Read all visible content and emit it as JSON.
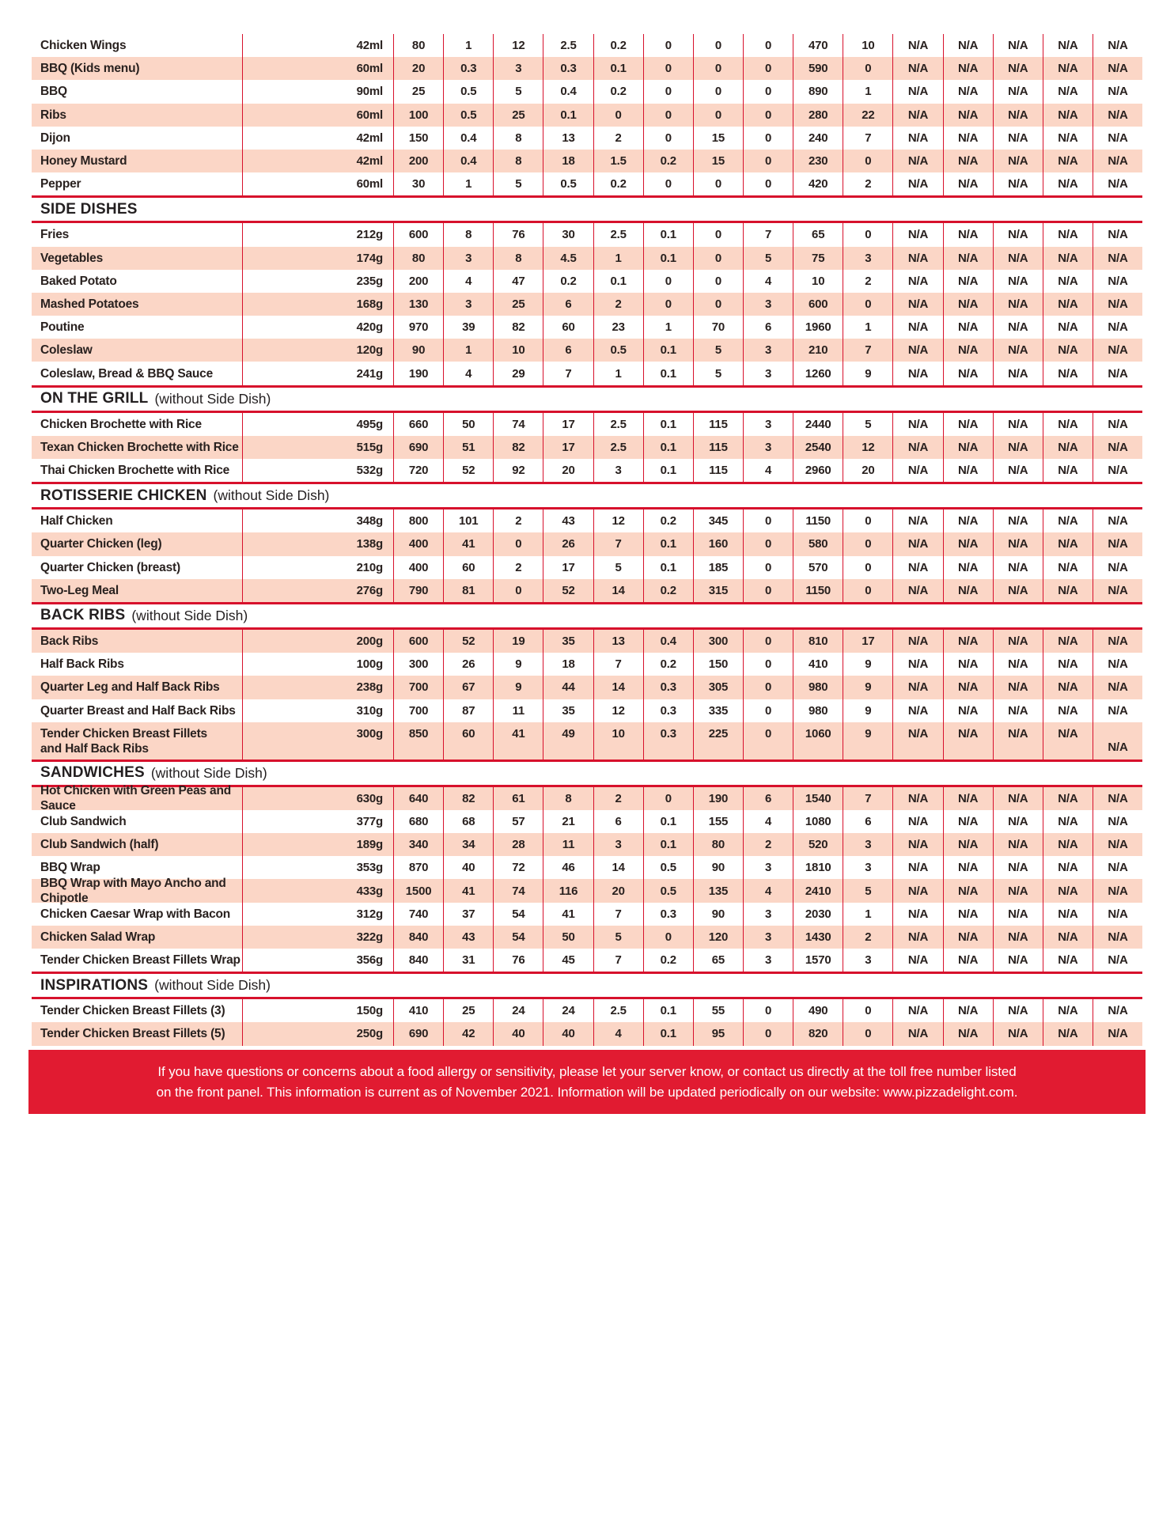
{
  "table": {
    "sections": [
      {
        "title": "",
        "subtitle": "",
        "rows": [
          {
            "name": "Chicken Wings",
            "serving": "42ml",
            "values": [
              "80",
              "1",
              "12",
              "2.5",
              "0.2",
              "0",
              "0",
              "0",
              "470",
              "10",
              "N/A",
              "N/A",
              "N/A",
              "N/A",
              "N/A"
            ]
          },
          {
            "name": "BBQ (Kids menu)",
            "serving": "60ml",
            "values": [
              "20",
              "0.3",
              "3",
              "0.3",
              "0.1",
              "0",
              "0",
              "0",
              "590",
              "0",
              "N/A",
              "N/A",
              "N/A",
              "N/A",
              "N/A"
            ]
          },
          {
            "name": "BBQ",
            "serving": "90ml",
            "values": [
              "25",
              "0.5",
              "5",
              "0.4",
              "0.2",
              "0",
              "0",
              "0",
              "890",
              "1",
              "N/A",
              "N/A",
              "N/A",
              "N/A",
              "N/A"
            ]
          },
          {
            "name": "Ribs",
            "serving": "60ml",
            "values": [
              "100",
              "0.5",
              "25",
              "0.1",
              "0",
              "0",
              "0",
              "0",
              "280",
              "22",
              "N/A",
              "N/A",
              "N/A",
              "N/A",
              "N/A"
            ]
          },
          {
            "name": "Dijon",
            "serving": "42ml",
            "values": [
              "150",
              "0.4",
              "8",
              "13",
              "2",
              "0",
              "15",
              "0",
              "240",
              "7",
              "N/A",
              "N/A",
              "N/A",
              "N/A",
              "N/A"
            ]
          },
          {
            "name": "Honey Mustard",
            "serving": "42ml",
            "values": [
              "200",
              "0.4",
              "8",
              "18",
              "1.5",
              "0.2",
              "15",
              "0",
              "230",
              "0",
              "N/A",
              "N/A",
              "N/A",
              "N/A",
              "N/A"
            ]
          },
          {
            "name": "Pepper",
            "serving": "60ml",
            "values": [
              "30",
              "1",
              "5",
              "0.5",
              "0.2",
              "0",
              "0",
              "0",
              "420",
              "2",
              "N/A",
              "N/A",
              "N/A",
              "N/A",
              "N/A"
            ]
          }
        ]
      },
      {
        "title": "SIDE DISHES",
        "subtitle": "",
        "rows": [
          {
            "name": "Fries",
            "serving": "212g",
            "values": [
              "600",
              "8",
              "76",
              "30",
              "2.5",
              "0.1",
              "0",
              "7",
              "65",
              "0",
              "N/A",
              "N/A",
              "N/A",
              "N/A",
              "N/A"
            ]
          },
          {
            "name": "Vegetables",
            "serving": "174g",
            "values": [
              "80",
              "3",
              "8",
              "4.5",
              "1",
              "0.1",
              "0",
              "5",
              "75",
              "3",
              "N/A",
              "N/A",
              "N/A",
              "N/A",
              "N/A"
            ]
          },
          {
            "name": "Baked Potato",
            "serving": "235g",
            "values": [
              "200",
              "4",
              "47",
              "0.2",
              "0.1",
              "0",
              "0",
              "4",
              "10",
              "2",
              "N/A",
              "N/A",
              "N/A",
              "N/A",
              "N/A"
            ]
          },
          {
            "name": "Mashed Potatoes",
            "serving": "168g",
            "values": [
              "130",
              "3",
              "25",
              "6",
              "2",
              "0",
              "0",
              "3",
              "600",
              "0",
              "N/A",
              "N/A",
              "N/A",
              "N/A",
              "N/A"
            ]
          },
          {
            "name": "Poutine",
            "serving": "420g",
            "values": [
              "970",
              "39",
              "82",
              "60",
              "23",
              "1",
              "70",
              "6",
              "1960",
              "1",
              "N/A",
              "N/A",
              "N/A",
              "N/A",
              "N/A"
            ]
          },
          {
            "name": "Coleslaw",
            "serving": "120g",
            "values": [
              "90",
              "1",
              "10",
              "6",
              "0.5",
              "0.1",
              "5",
              "3",
              "210",
              "7",
              "N/A",
              "N/A",
              "N/A",
              "N/A",
              "N/A"
            ]
          },
          {
            "name": "Coleslaw, Bread & BBQ Sauce",
            "serving": "241g",
            "values": [
              "190",
              "4",
              "29",
              "7",
              "1",
              "0.1",
              "5",
              "3",
              "1260",
              "9",
              "N/A",
              "N/A",
              "N/A",
              "N/A",
              "N/A"
            ]
          }
        ]
      },
      {
        "title": "ON THE GRILL",
        "subtitle": "(without Side Dish)",
        "rows": [
          {
            "name": "Chicken Brochette with Rice",
            "serving": "495g",
            "values": [
              "660",
              "50",
              "74",
              "17",
              "2.5",
              "0.1",
              "115",
              "3",
              "2440",
              "5",
              "N/A",
              "N/A",
              "N/A",
              "N/A",
              "N/A"
            ]
          },
          {
            "name": "Texan Chicken Brochette with Rice",
            "serving": "515g",
            "values": [
              "690",
              "51",
              "82",
              "17",
              "2.5",
              "0.1",
              "115",
              "3",
              "2540",
              "12",
              "N/A",
              "N/A",
              "N/A",
              "N/A",
              "N/A"
            ]
          },
          {
            "name": "Thai Chicken Brochette with Rice",
            "serving": "532g",
            "values": [
              "720",
              "52",
              "92",
              "20",
              "3",
              "0.1",
              "115",
              "4",
              "2960",
              "20",
              "N/A",
              "N/A",
              "N/A",
              "N/A",
              "N/A"
            ]
          }
        ]
      },
      {
        "title": "ROTISSERIE CHICKEN",
        "subtitle": "(without Side Dish)",
        "rows": [
          {
            "name": "Half Chicken",
            "serving": "348g",
            "values": [
              "800",
              "101",
              "2",
              "43",
              "12",
              "0.2",
              "345",
              "0",
              "1150",
              "0",
              "N/A",
              "N/A",
              "N/A",
              "N/A",
              "N/A"
            ]
          },
          {
            "name": "Quarter Chicken (leg)",
            "serving": "138g",
            "values": [
              "400",
              "41",
              "0",
              "26",
              "7",
              "0.1",
              "160",
              "0",
              "580",
              "0",
              "N/A",
              "N/A",
              "N/A",
              "N/A",
              "N/A"
            ]
          },
          {
            "name": "Quarter Chicken (breast)",
            "serving": "210g",
            "values": [
              "400",
              "60",
              "2",
              "17",
              "5",
              "0.1",
              "185",
              "0",
              "570",
              "0",
              "N/A",
              "N/A",
              "N/A",
              "N/A",
              "N/A"
            ]
          },
          {
            "name": "Two-Leg Meal",
            "serving": "276g",
            "values": [
              "790",
              "81",
              "0",
              "52",
              "14",
              "0.2",
              "315",
              "0",
              "1150",
              "0",
              "N/A",
              "N/A",
              "N/A",
              "N/A",
              "N/A"
            ]
          }
        ]
      },
      {
        "title": "BACK RIBS",
        "subtitle": "(without Side Dish)",
        "rows": [
          {
            "name": "Back Ribs",
            "serving": "200g",
            "values": [
              "600",
              "52",
              "19",
              "35",
              "13",
              "0.4",
              "300",
              "0",
              "810",
              "17",
              "N/A",
              "N/A",
              "N/A",
              "N/A",
              "N/A"
            ]
          },
          {
            "name": "Half Back Ribs",
            "serving": "100g",
            "values": [
              "300",
              "26",
              "9",
              "18",
              "7",
              "0.2",
              "150",
              "0",
              "410",
              "9",
              "N/A",
              "N/A",
              "N/A",
              "N/A",
              "N/A"
            ]
          },
          {
            "name": "Quarter Leg and Half Back Ribs",
            "serving": "238g",
            "values": [
              "700",
              "67",
              "9",
              "44",
              "14",
              "0.3",
              "305",
              "0",
              "980",
              "9",
              "N/A",
              "N/A",
              "N/A",
              "N/A",
              "N/A"
            ]
          },
          {
            "name": "Quarter Breast and Half Back Ribs",
            "serving": "310g",
            "values": [
              "700",
              "87",
              "11",
              "35",
              "12",
              "0.3",
              "335",
              "0",
              "980",
              "9",
              "N/A",
              "N/A",
              "N/A",
              "N/A",
              "N/A"
            ]
          },
          {
            "name": "Tender Chicken Breast Fillets",
            "name2": "and Half Back Ribs",
            "tall": true,
            "serving": "300g",
            "values": [
              "850",
              "60",
              "41",
              "49",
              "10",
              "0.3",
              "225",
              "0",
              "1060",
              "9",
              "N/A",
              "N/A",
              "N/A",
              "N/A",
              "N/A"
            ]
          }
        ]
      },
      {
        "title": "SANDWICHES",
        "subtitle": "(without Side Dish)",
        "rows": [
          {
            "name": "Hot Chicken with Green Peas and Sauce",
            "serving": "630g",
            "values": [
              "640",
              "82",
              "61",
              "8",
              "2",
              "0",
              "190",
              "6",
              "1540",
              "7",
              "N/A",
              "N/A",
              "N/A",
              "N/A",
              "N/A"
            ]
          },
          {
            "name": "Club Sandwich",
            "serving": "377g",
            "values": [
              "680",
              "68",
              "57",
              "21",
              "6",
              "0.1",
              "155",
              "4",
              "1080",
              "6",
              "N/A",
              "N/A",
              "N/A",
              "N/A",
              "N/A"
            ]
          },
          {
            "name": "Club Sandwich (half)",
            "serving": "189g",
            "values": [
              "340",
              "34",
              "28",
              "11",
              "3",
              "0.1",
              "80",
              "2",
              "520",
              "3",
              "N/A",
              "N/A",
              "N/A",
              "N/A",
              "N/A"
            ]
          },
          {
            "name": "BBQ Wrap",
            "serving": "353g",
            "values": [
              "870",
              "40",
              "72",
              "46",
              "14",
              "0.5",
              "90",
              "3",
              "1810",
              "3",
              "N/A",
              "N/A",
              "N/A",
              "N/A",
              "N/A"
            ]
          },
          {
            "name": "BBQ Wrap with Mayo Ancho and Chipotle",
            "serving": "433g",
            "values": [
              "1500",
              "41",
              "74",
              "116",
              "20",
              "0.5",
              "135",
              "4",
              "2410",
              "5",
              "N/A",
              "N/A",
              "N/A",
              "N/A",
              "N/A"
            ]
          },
          {
            "name": "Chicken Caesar Wrap with Bacon",
            "serving": "312g",
            "values": [
              "740",
              "37",
              "54",
              "41",
              "7",
              "0.3",
              "90",
              "3",
              "2030",
              "1",
              "N/A",
              "N/A",
              "N/A",
              "N/A",
              "N/A"
            ]
          },
          {
            "name": "Chicken Salad Wrap",
            "serving": "322g",
            "values": [
              "840",
              "43",
              "54",
              "50",
              "5",
              "0",
              "120",
              "3",
              "1430",
              "2",
              "N/A",
              "N/A",
              "N/A",
              "N/A",
              "N/A"
            ]
          },
          {
            "name": "Tender Chicken Breast Fillets Wrap",
            "serving": "356g",
            "values": [
              "840",
              "31",
              "76",
              "45",
              "7",
              "0.2",
              "65",
              "3",
              "1570",
              "3",
              "N/A",
              "N/A",
              "N/A",
              "N/A",
              "N/A"
            ]
          }
        ]
      },
      {
        "title": "INSPIRATIONS",
        "subtitle": "(without Side Dish)",
        "rows": [
          {
            "name": "Tender Chicken Breast Fillets (3)",
            "serving": "150g",
            "values": [
              "410",
              "25",
              "24",
              "24",
              "2.5",
              "0.1",
              "55",
              "0",
              "490",
              "0",
              "N/A",
              "N/A",
              "N/A",
              "N/A",
              "N/A"
            ]
          },
          {
            "name": "Tender Chicken Breast Fillets (5)",
            "serving": "250g",
            "values": [
              "690",
              "42",
              "40",
              "40",
              "4",
              "0.1",
              "95",
              "0",
              "820",
              "0",
              "N/A",
              "N/A",
              "N/A",
              "N/A",
              "N/A"
            ]
          }
        ]
      }
    ]
  },
  "footer": {
    "line1": "If you have questions or concerns about a food allergy or sensitivity, please let your server know, or contact us directly at the toll free number listed",
    "line2": "on the front panel. This information is current as of November 2021. Information will be updated periodically on our website: www.pizzadelight.com."
  },
  "colors": {
    "accent_red": "#d7112c",
    "footer_red": "#e11b31",
    "row_pink": "#fbd6c6",
    "text": "#29211f"
  }
}
